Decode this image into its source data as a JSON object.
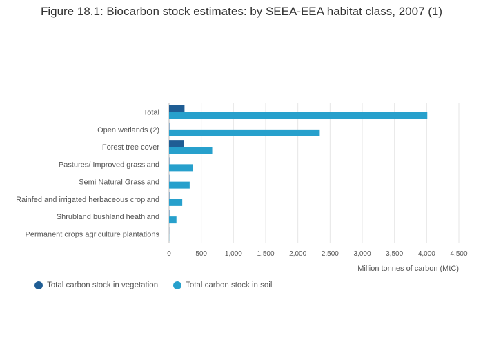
{
  "chart_data": {
    "type": "bar",
    "orientation": "horizontal",
    "title": "Figure 18.1: Biocarbon stock estimates: by SEEA-EEA habitat class, 2007 (1)",
    "xlabel": "Million tonnes of carbon (MtC)",
    "ylabel": "",
    "xlim": [
      0,
      4500
    ],
    "xticks": [
      "0",
      "500",
      "1,000",
      "1,500",
      "2,000",
      "2,500",
      "3,000",
      "3,500",
      "4,000",
      "4,500"
    ],
    "grid": true,
    "legend_position": "bottom-left",
    "categories": [
      "Total",
      "Open wetlands (2)",
      "Forest tree cover",
      "Pastures/ Improved grassland",
      "Semi Natural Grassland",
      "Rainfed and irrigated herbaceous cropland",
      "Shrubland bushland heathland",
      "Permanent crops agriculture plantations"
    ],
    "series": [
      {
        "name": "Total carbon stock in vegetation",
        "color": "#1f5d94",
        "values": [
          240,
          5,
          225,
          5,
          5,
          5,
          5,
          2
        ]
      },
      {
        "name": "Total carbon stock in soil",
        "color": "#27a0cc",
        "values": [
          4010,
          2340,
          670,
          365,
          320,
          205,
          115,
          2
        ]
      }
    ]
  }
}
